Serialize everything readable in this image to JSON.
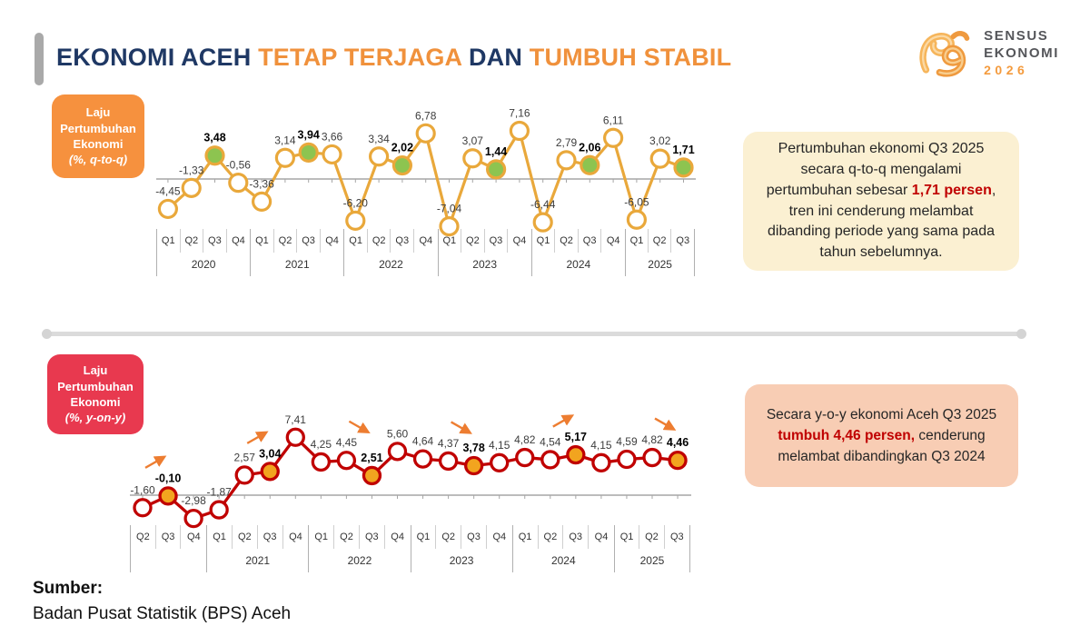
{
  "header": {
    "title_parts": [
      {
        "text": "EKONOMI ACEH ",
        "color": "#1f3864"
      },
      {
        "text": "TETAP TERJAGA ",
        "color": "#f0913c"
      },
      {
        "text": "DAN ",
        "color": "#1f3864"
      },
      {
        "text": "TUMBUH STABIL",
        "color": "#f0913c"
      }
    ],
    "logo": {
      "line1": "SENSUS",
      "line2": "EKONOMI",
      "line3": "2026"
    }
  },
  "chart_data": [
    {
      "type": "line",
      "title": "Laju Pertumbuhan Ekonomi (%, q-to-q)",
      "box_label": {
        "lines": [
          "Laju",
          "Pertumbuhan",
          "Ekonomi"
        ],
        "unit": "(%, q-to-q)",
        "bg": "#f6913e"
      },
      "years": [
        {
          "label": "2020",
          "quarters": [
            "Q1",
            "Q2",
            "Q3",
            "Q4"
          ]
        },
        {
          "label": "2021",
          "quarters": [
            "Q1",
            "Q2",
            "Q3",
            "Q4"
          ]
        },
        {
          "label": "2022",
          "quarters": [
            "Q1",
            "Q2",
            "Q3",
            "Q4"
          ]
        },
        {
          "label": "2023",
          "quarters": [
            "Q1",
            "Q2",
            "Q3",
            "Q4"
          ]
        },
        {
          "label": "2024",
          "quarters": [
            "Q1",
            "Q2",
            "Q3",
            "Q4"
          ]
        },
        {
          "label": "2025",
          "quarters": [
            "Q1",
            "Q2",
            "Q3"
          ]
        }
      ],
      "categories": [
        "Q1-2020",
        "Q2-2020",
        "Q3-2020",
        "Q4-2020",
        "Q1-2021",
        "Q2-2021",
        "Q3-2021",
        "Q4-2021",
        "Q1-2022",
        "Q2-2022",
        "Q3-2022",
        "Q4-2022",
        "Q1-2023",
        "Q2-2023",
        "Q3-2023",
        "Q4-2023",
        "Q1-2024",
        "Q2-2024",
        "Q3-2024",
        "Q4-2024",
        "Q1-2025",
        "Q2-2025",
        "Q3-2025"
      ],
      "values": [
        -4.45,
        -1.33,
        3.48,
        -0.56,
        -3.36,
        3.14,
        3.94,
        3.66,
        -6.2,
        3.34,
        2.02,
        6.78,
        -7.04,
        3.07,
        1.44,
        7.16,
        -6.44,
        2.79,
        2.06,
        6.11,
        -6.05,
        3.02,
        1.71
      ],
      "labels": [
        "-4,45",
        "-1,33",
        "3,48",
        "-0,56",
        "-3,36",
        "3,14",
        "3,94",
        "3,66",
        "-6,20",
        "3,34",
        "2,02",
        "6,78",
        "-7,04",
        "3,07",
        "1,44",
        "7,16",
        "-6,44",
        "2,79",
        "2,06",
        "6,11",
        "-6,05",
        "3,02",
        "1,71"
      ],
      "highlight_indices": [
        2,
        6,
        10,
        14,
        18,
        22
      ],
      "ylim": [
        -8,
        8
      ],
      "line_color": "#e9a83b",
      "marker_fill": "#ffffff",
      "highlight_fill": "#8dc450",
      "arrows": []
    },
    {
      "type": "line",
      "title": "Laju Pertumbuhan Ekonomi (%, y-on-y)",
      "box_label": {
        "lines": [
          "Laju",
          "Pertumbuhan",
          "Ekonomi"
        ],
        "unit": "(%, y-on-y)",
        "bg": "#e8394f"
      },
      "years": [
        {
          "label": "",
          "quarters": [
            "Q2",
            "Q3",
            "Q4"
          ]
        },
        {
          "label": "2021",
          "quarters": [
            "Q1",
            "Q2",
            "Q3",
            "Q4"
          ]
        },
        {
          "label": "2022",
          "quarters": [
            "Q1",
            "Q2",
            "Q3",
            "Q4"
          ]
        },
        {
          "label": "2023",
          "quarters": [
            "Q1",
            "Q2",
            "Q3",
            "Q4"
          ]
        },
        {
          "label": "2024",
          "quarters": [
            "Q1",
            "Q2",
            "Q3",
            "Q4"
          ]
        },
        {
          "label": "2025",
          "quarters": [
            "Q1",
            "Q2",
            "Q3"
          ]
        }
      ],
      "categories": [
        "Q2-2020",
        "Q3-2020",
        "Q4-2020",
        "Q1-2021",
        "Q2-2021",
        "Q3-2021",
        "Q4-2021",
        "Q1-2022",
        "Q2-2022",
        "Q3-2022",
        "Q4-2022",
        "Q1-2023",
        "Q2-2023",
        "Q3-2023",
        "Q4-2023",
        "Q1-2024",
        "Q2-2024",
        "Q3-2024",
        "Q4-2024",
        "Q1-2025",
        "Q2-2025",
        "Q3-2025"
      ],
      "values": [
        -1.6,
        -0.1,
        -2.98,
        -1.87,
        2.57,
        3.04,
        7.41,
        4.25,
        4.45,
        2.51,
        5.6,
        4.64,
        4.37,
        3.78,
        4.15,
        4.82,
        4.54,
        5.17,
        4.15,
        4.59,
        4.82,
        4.46
      ],
      "labels": [
        "-1,60",
        "-0,10",
        "-2,98",
        "-1,87",
        "2,57",
        "3,04",
        "7,41",
        "4,25",
        "4,45",
        "2,51",
        "5,60",
        "4,64",
        "4,37",
        "3,78",
        "4,15",
        "4,82",
        "4,54",
        "5,17",
        "4,15",
        "4,59",
        "4,82",
        "4,46"
      ],
      "highlight_indices": [
        1,
        5,
        9,
        13,
        17,
        21
      ],
      "ylim": [
        -8,
        8
      ],
      "line_color": "#c00000",
      "marker_fill": "#ffffff",
      "highlight_fill": "#f2a41f",
      "arrow_color": "#ed7d31",
      "arrows": [
        {
          "from": 0,
          "to": 1,
          "dir": "up"
        },
        {
          "from": 4,
          "to": 5,
          "dir": "up"
        },
        {
          "from": 8,
          "to": 9,
          "dir": "down"
        },
        {
          "from": 12,
          "to": 13,
          "dir": "down"
        },
        {
          "from": 16,
          "to": 17,
          "dir": "up"
        },
        {
          "from": 20,
          "to": 21,
          "dir": "down"
        }
      ]
    }
  ],
  "callouts": [
    {
      "bg": "#fbf0d2",
      "accent_color": "#c00000",
      "segments": [
        {
          "text": "Pertumbuhan ekonomi Q3 2025 secara q-to-q mengalami pertumbuhan sebesar "
        },
        {
          "text": "1,71 persen",
          "bold_red": true
        },
        {
          "text": ", tren ini cenderung melambat dibanding periode yang sama pada tahun sebelumnya."
        }
      ]
    },
    {
      "bg": "#f8cdb4",
      "accent_color": "#c00000",
      "segments": [
        {
          "text": "Secara y-o-y ekonomi Aceh Q3 2025 "
        },
        {
          "text": "tumbuh 4,46 persen,",
          "bold_red": true
        },
        {
          "text": " cenderung melambat dibandingkan Q3 2024"
        }
      ]
    }
  ],
  "source": {
    "label": "Sumber:",
    "text": "Badan Pusat Statistik (BPS) Aceh"
  }
}
